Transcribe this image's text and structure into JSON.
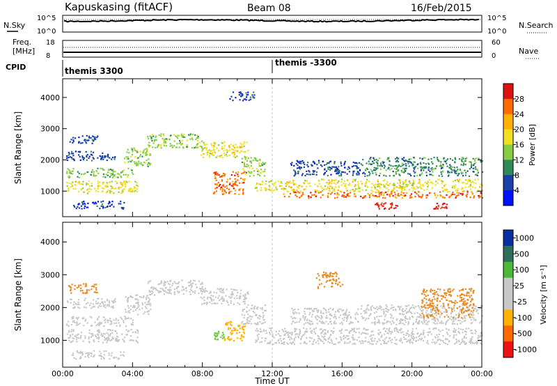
{
  "header": {
    "station": "Kapuskasing (fitACF)",
    "beam": "Beam 08",
    "date": "16/Feb/2015"
  },
  "noise_panel": {
    "left_label": "N.Sky",
    "right_label": "N.Search",
    "left_ticks": [
      "10^5",
      "10^0"
    ],
    "right_ticks": [
      "10^5",
      "10^0"
    ]
  },
  "freq_panel": {
    "left_label_line1": "Freq.",
    "left_label_line2": "[MHz]",
    "right_label": "Nave",
    "left_ticks": [
      "18",
      "8"
    ],
    "right_ticks": [
      "60",
      "0"
    ]
  },
  "cpid": {
    "label": "CPID",
    "segments": [
      {
        "text": "themis 3300",
        "start_hour": 0
      },
      {
        "text": "themis -3300",
        "start_hour": 12
      }
    ]
  },
  "chart_data": [
    {
      "type": "heatmap",
      "name": "power",
      "x_range_hours": [
        0,
        24
      ],
      "ylabel": "Slant Range [km]",
      "ylim": [
        180,
        4600
      ],
      "y_ticks": [
        1000,
        2000,
        3000,
        4000
      ],
      "colorbar_label": "Power [dB]",
      "colorbar_ticks": [
        "28",
        "24",
        "20",
        "16",
        "12",
        "8",
        "4"
      ],
      "colorbar_colors": [
        "#dd1111",
        "#ff6a00",
        "#ffb000",
        "#f0e020",
        "#88cc44",
        "#2e8b57",
        "#1a3fa8",
        "#0010ff"
      ],
      "colorbar_range": [
        0,
        32
      ],
      "bands": [
        {
          "t0": 0.2,
          "t1": 4.3,
          "r0": 950,
          "r1": 1350,
          "level": 18
        },
        {
          "t0": 0.2,
          "t1": 4.0,
          "r0": 1450,
          "r1": 1750,
          "level": 14
        },
        {
          "t0": 0.2,
          "t1": 3.0,
          "r0": 2000,
          "r1": 2300,
          "level": 8
        },
        {
          "t0": 0.2,
          "t1": 2.0,
          "r0": 2550,
          "r1": 2800,
          "level": 6
        },
        {
          "t0": 0.5,
          "t1": 3.5,
          "r0": 450,
          "r1": 700,
          "level": 6
        },
        {
          "t0": 3.5,
          "t1": 5.0,
          "r0": 1800,
          "r1": 2400,
          "level": 14
        },
        {
          "t0": 4.8,
          "t1": 8.0,
          "r0": 2400,
          "r1": 2850,
          "level": 16
        },
        {
          "t0": 7.8,
          "t1": 10.6,
          "r0": 2100,
          "r1": 2600,
          "level": 20
        },
        {
          "t0": 8.6,
          "t1": 10.4,
          "r0": 900,
          "r1": 1650,
          "level": 26
        },
        {
          "t0": 10.2,
          "t1": 11.6,
          "r0": 1500,
          "r1": 2100,
          "level": 16
        },
        {
          "t0": 11.0,
          "t1": 12.6,
          "r0": 1000,
          "r1": 1350,
          "level": 20
        },
        {
          "t0": 12.6,
          "t1": 24.0,
          "r0": 1000,
          "r1": 1400,
          "level": 20
        },
        {
          "t0": 12.6,
          "t1": 24.0,
          "r0": 800,
          "r1": 1000,
          "level": 26
        },
        {
          "t0": 17.5,
          "t1": 19.2,
          "r0": 450,
          "r1": 650,
          "level": 30
        },
        {
          "t0": 21.2,
          "t1": 22.0,
          "r0": 450,
          "r1": 650,
          "level": 30
        },
        {
          "t0": 13.0,
          "t1": 17.0,
          "r0": 1500,
          "r1": 2000,
          "level": 6
        },
        {
          "t0": 17.0,
          "t1": 24.0,
          "r0": 1500,
          "r1": 2100,
          "level": 10
        },
        {
          "t0": 9.5,
          "t1": 11.0,
          "r0": 3900,
          "r1": 4200,
          "level": 6
        }
      ]
    },
    {
      "type": "heatmap",
      "name": "velocity",
      "x_range_hours": [
        0,
        24
      ],
      "ylabel": "Slant Range [km]",
      "ylim": [
        180,
        4600
      ],
      "y_ticks": [
        1000,
        2000,
        3000,
        4000
      ],
      "xlabel": "Time UT",
      "x_tick_labels": [
        "00:00",
        "04:00",
        "08:00",
        "12:00",
        "16:00",
        "20:00",
        "00:00"
      ],
      "colorbar_label": "Velocity [m s⁻¹]",
      "colorbar_ticks": [
        "1000",
        "500",
        "100",
        "25",
        "-25",
        "-100",
        "-500",
        "-1000"
      ],
      "colorbar_colors": [
        "#0a2fa0",
        "#2e6e5a",
        "#4bb83a",
        "#c8c8c8",
        "#c8c8c8",
        "#ffb000",
        "#ff6a00",
        "#ee1111"
      ],
      "bands": [
        {
          "t0": 0.2,
          "t1": 4.3,
          "r0": 950,
          "r1": 1350,
          "color": "#c8c8c8"
        },
        {
          "t0": 0.2,
          "t1": 4.0,
          "r0": 1450,
          "r1": 1750,
          "color": "#c8c8c8"
        },
        {
          "t0": 0.2,
          "t1": 3.0,
          "r0": 2000,
          "r1": 2300,
          "color": "#c8c8c8"
        },
        {
          "t0": 0.5,
          "t1": 3.5,
          "r0": 450,
          "r1": 700,
          "color": "#c8c8c8"
        },
        {
          "t0": 0.3,
          "t1": 2.0,
          "r0": 2450,
          "r1": 2750,
          "color": "#e88a20"
        },
        {
          "t0": 3.5,
          "t1": 5.0,
          "r0": 1800,
          "r1": 2400,
          "color": "#c8c8c8"
        },
        {
          "t0": 4.8,
          "t1": 8.0,
          "r0": 2400,
          "r1": 2850,
          "color": "#c8c8c8"
        },
        {
          "t0": 7.8,
          "t1": 10.6,
          "r0": 2100,
          "r1": 2600,
          "color": "#c8c8c8"
        },
        {
          "t0": 8.6,
          "t1": 9.2,
          "r0": 1000,
          "r1": 1300,
          "color": "#66cc33"
        },
        {
          "t0": 9.2,
          "t1": 10.4,
          "r0": 1000,
          "r1": 1600,
          "color": "#ffb000"
        },
        {
          "t0": 10.2,
          "t1": 11.6,
          "r0": 1500,
          "r1": 2100,
          "color": "#c8c8c8"
        },
        {
          "t0": 11.0,
          "t1": 24.0,
          "r0": 900,
          "r1": 1400,
          "color": "#c8c8c8"
        },
        {
          "t0": 13.0,
          "t1": 17.0,
          "r0": 1500,
          "r1": 2000,
          "color": "#c8c8c8"
        },
        {
          "t0": 17.0,
          "t1": 24.0,
          "r0": 1500,
          "r1": 2100,
          "color": "#c8c8c8"
        },
        {
          "t0": 14.5,
          "t1": 16.0,
          "r0": 2600,
          "r1": 3100,
          "color": "#e88a20"
        },
        {
          "t0": 20.5,
          "t1": 23.5,
          "r0": 1700,
          "r1": 2600,
          "color": "#e88a20"
        }
      ]
    }
  ]
}
